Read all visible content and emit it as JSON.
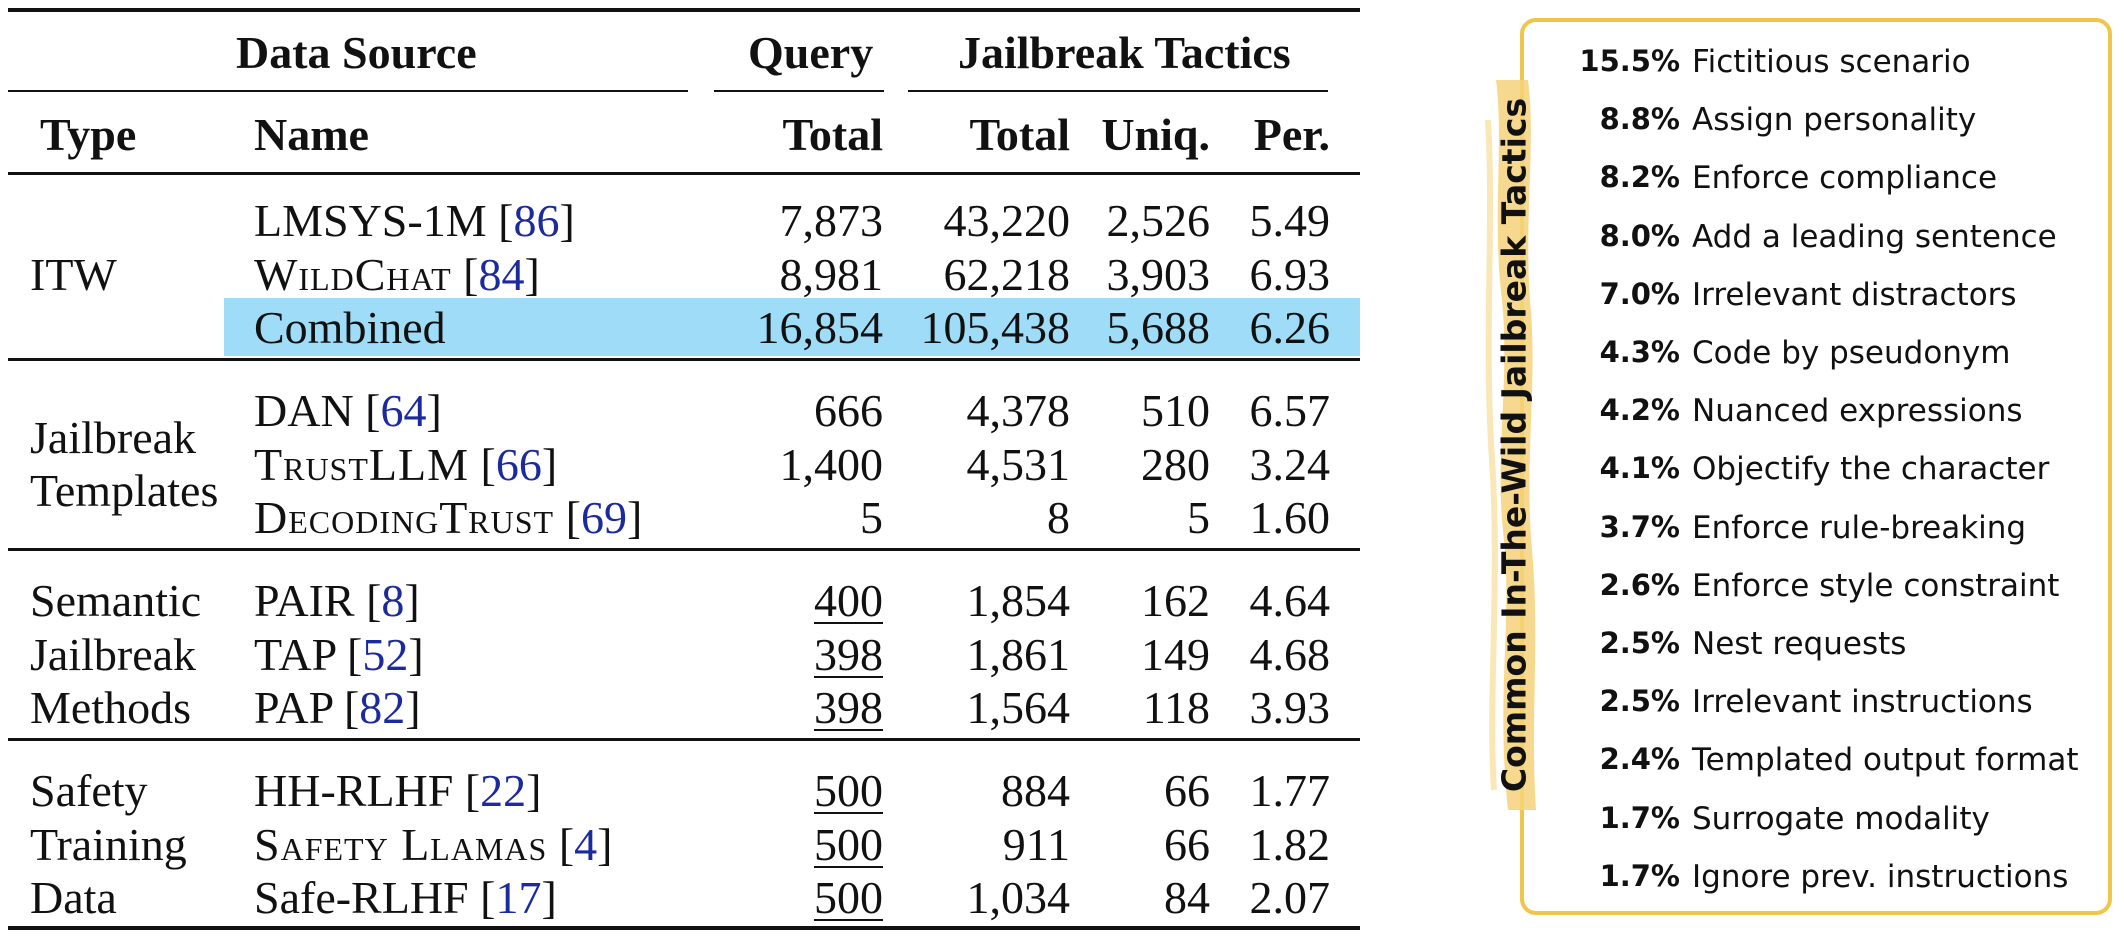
{
  "table": {
    "group_headers": {
      "data_source": "Data Source",
      "query": "Query",
      "jailbreak_tactics": "Jailbreak Tactics"
    },
    "col_headers": {
      "type": "Type",
      "name": "Name",
      "query_total": "Total",
      "jt_total": "Total",
      "uniq": "Uniq.",
      "per": "Per."
    },
    "groups": [
      {
        "type_lines": [
          "ITW"
        ],
        "rows": [
          {
            "name": "LMSYS-1M",
            "smallcaps": false,
            "cite": "86",
            "query_total": "7,873",
            "query_underline": false,
            "jt_total": "43,220",
            "uniq": "2,526",
            "per": "5.49"
          },
          {
            "name": "WildChat",
            "smallcaps": true,
            "cite": "84",
            "query_total": "8,981",
            "query_underline": false,
            "jt_total": "62,218",
            "uniq": "3,903",
            "per": "6.93"
          },
          {
            "name": "Combined",
            "smallcaps": false,
            "cite": "",
            "highlight": true,
            "query_total": "16,854",
            "query_underline": false,
            "jt_total": "105,438",
            "uniq": "5,688",
            "per": "6.26"
          }
        ]
      },
      {
        "type_lines": [
          "Jailbreak",
          "Templates"
        ],
        "rows": [
          {
            "name": "DAN",
            "smallcaps": false,
            "cite": "64",
            "query_total": "666",
            "query_underline": false,
            "jt_total": "4,378",
            "uniq": "510",
            "per": "6.57"
          },
          {
            "name": "TrustLLM",
            "smallcaps": true,
            "cite": "66",
            "query_total": "1,400",
            "query_underline": false,
            "jt_total": "4,531",
            "uniq": "280",
            "per": "3.24"
          },
          {
            "name": "DecodingTrust",
            "smallcaps": true,
            "cite": "69",
            "query_total": "5",
            "query_underline": false,
            "jt_total": "8",
            "uniq": "5",
            "per": "1.60"
          }
        ]
      },
      {
        "type_lines": [
          "Semantic",
          "Jailbreak",
          "Methods"
        ],
        "rows": [
          {
            "name": "PAIR",
            "smallcaps": false,
            "cite": "8",
            "query_total": "400",
            "query_underline": true,
            "jt_total": "1,854",
            "uniq": "162",
            "per": "4.64"
          },
          {
            "name": "TAP",
            "smallcaps": false,
            "cite": "52",
            "query_total": "398",
            "query_underline": true,
            "jt_total": "1,861",
            "uniq": "149",
            "per": "4.68"
          },
          {
            "name": "PAP",
            "smallcaps": false,
            "cite": "82",
            "query_total": "398",
            "query_underline": true,
            "jt_total": "1,564",
            "uniq": "118",
            "per": "3.93"
          }
        ]
      },
      {
        "type_lines": [
          "Safety",
          "Training",
          "Data"
        ],
        "rows": [
          {
            "name": "HH-RLHF",
            "smallcaps": false,
            "cite": "22",
            "query_total": "500",
            "query_underline": true,
            "jt_total": "884",
            "uniq": "66",
            "per": "1.77"
          },
          {
            "name": "Safety Llamas",
            "smallcaps": true,
            "cite": "4",
            "query_total": "500",
            "query_underline": true,
            "jt_total": "911",
            "uniq": "66",
            "per": "1.82"
          },
          {
            "name": "Safe-RLHF",
            "smallcaps": false,
            "cite": "17",
            "query_total": "500",
            "query_underline": true,
            "jt_total": "1,034",
            "uniq": "84",
            "per": "2.07"
          }
        ]
      }
    ],
    "highlight_color": "#9fdcf7",
    "cite_color": "#1b2a9c"
  },
  "tactics_panel": {
    "title": "Common In-The-Wild Jailbreak Tactics",
    "border_color": "#f0c64a",
    "brush_color": "#f5d27a",
    "items": [
      {
        "pct": "15.5%",
        "label": "Fictitious scenario"
      },
      {
        "pct": "8.8%",
        "label": "Assign personality"
      },
      {
        "pct": "8.2%",
        "label": "Enforce compliance"
      },
      {
        "pct": "8.0%",
        "label": "Add a leading sentence"
      },
      {
        "pct": "7.0%",
        "label": "Irrelevant distractors"
      },
      {
        "pct": "4.3%",
        "label": "Code by pseudonym"
      },
      {
        "pct": "4.2%",
        "label": "Nuanced expressions"
      },
      {
        "pct": "4.1%",
        "label": "Objectify the character"
      },
      {
        "pct": "3.7%",
        "label": "Enforce rule-breaking"
      },
      {
        "pct": "2.6%",
        "label": "Enforce style constraint"
      },
      {
        "pct": "2.5%",
        "label": "Nest requests"
      },
      {
        "pct": "2.5%",
        "label": "Irrelevant instructions"
      },
      {
        "pct": "2.4%",
        "label": "Templated output format"
      },
      {
        "pct": "1.7%",
        "label": "Surrogate modality"
      },
      {
        "pct": "1.7%",
        "label": "Ignore prev. instructions"
      }
    ]
  }
}
